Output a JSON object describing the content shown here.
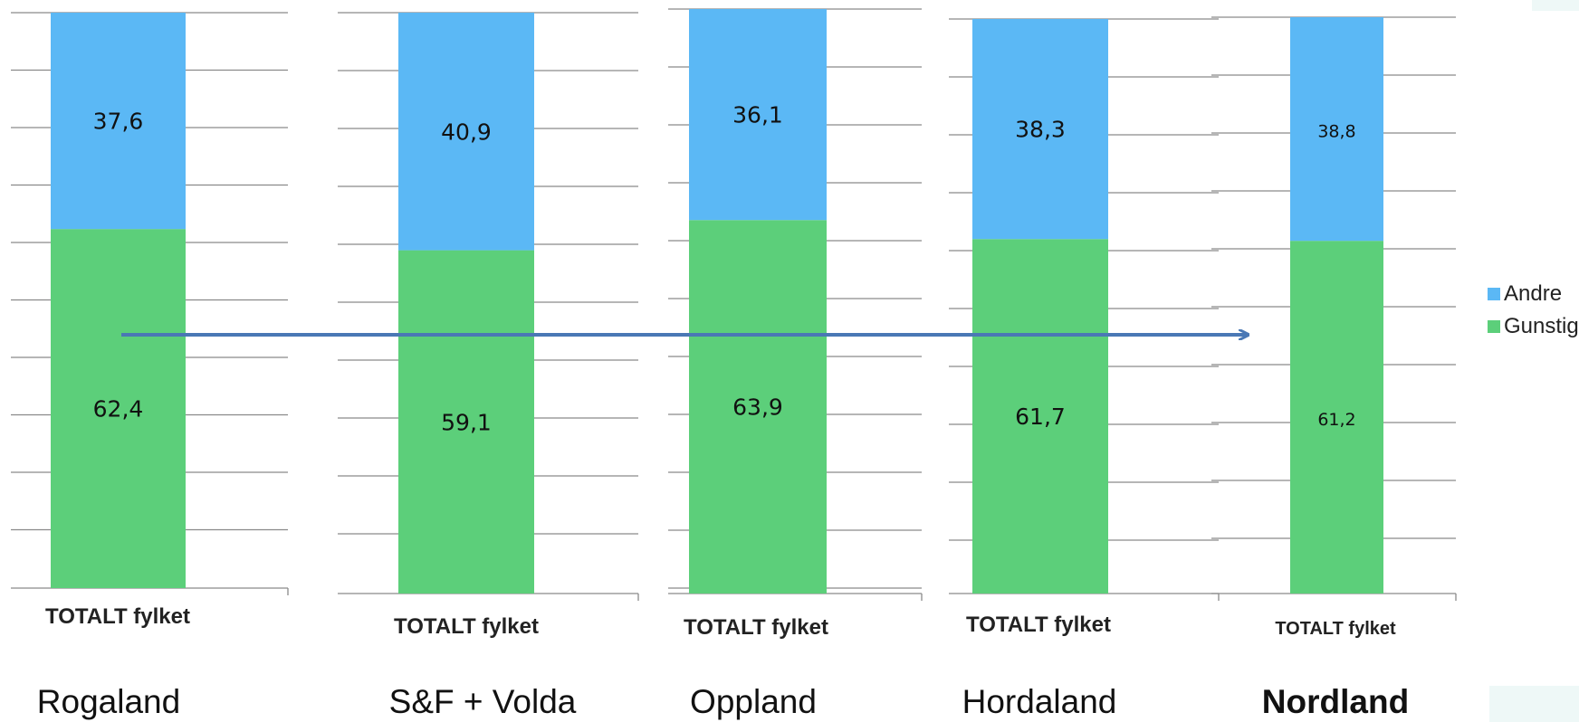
{
  "chart_data": [
    {
      "type": "bar",
      "stacked": true,
      "categories": [
        "TOTALT fylket"
      ],
      "region": "Rogaland",
      "series": [
        {
          "name": "Gunstig",
          "values": [
            62.4
          ],
          "label": "62,4"
        },
        {
          "name": "Andre",
          "values": [
            37.6
          ],
          "label": "37,6"
        }
      ]
    },
    {
      "type": "bar",
      "stacked": true,
      "categories": [
        "TOTALT fylket"
      ],
      "region": "S&F + Volda",
      "series": [
        {
          "name": "Gunstig",
          "values": [
            59.1
          ],
          "label": "59,1"
        },
        {
          "name": "Andre",
          "values": [
            40.9
          ],
          "label": "40,9"
        }
      ]
    },
    {
      "type": "bar",
      "stacked": true,
      "categories": [
        "TOTALT fylket"
      ],
      "region": "Oppland",
      "series": [
        {
          "name": "Gunstig",
          "values": [
            63.9
          ],
          "label": "63,9"
        },
        {
          "name": "Andre",
          "values": [
            36.1
          ],
          "label": "36,1"
        }
      ]
    },
    {
      "type": "bar",
      "stacked": true,
      "categories": [
        "TOTALT fylket"
      ],
      "region": "Hordaland",
      "series": [
        {
          "name": "Gunstig",
          "values": [
            61.7
          ],
          "label": "61,7"
        },
        {
          "name": "Andre",
          "values": [
            38.3
          ],
          "label": "38,3"
        }
      ]
    },
    {
      "type": "bar",
      "stacked": true,
      "categories": [
        "TOTALT fylket"
      ],
      "region": "Nordland",
      "highlight": true,
      "series": [
        {
          "name": "Gunstig",
          "values": [
            61.2
          ],
          "label": "61,2"
        },
        {
          "name": "Andre",
          "values": [
            38.8
          ],
          "label": "38,8"
        }
      ]
    }
  ],
  "legend": [
    {
      "name": "Andre",
      "color": "#5bb8f5"
    },
    {
      "name": "Gunstig",
      "color": "#5ccf7a"
    }
  ],
  "colors": {
    "andre": "#5bb8f5",
    "gunstig": "#5ccf7a",
    "arrow": "#4a78b5",
    "grid": "#8a8a8a"
  },
  "grid": true
}
